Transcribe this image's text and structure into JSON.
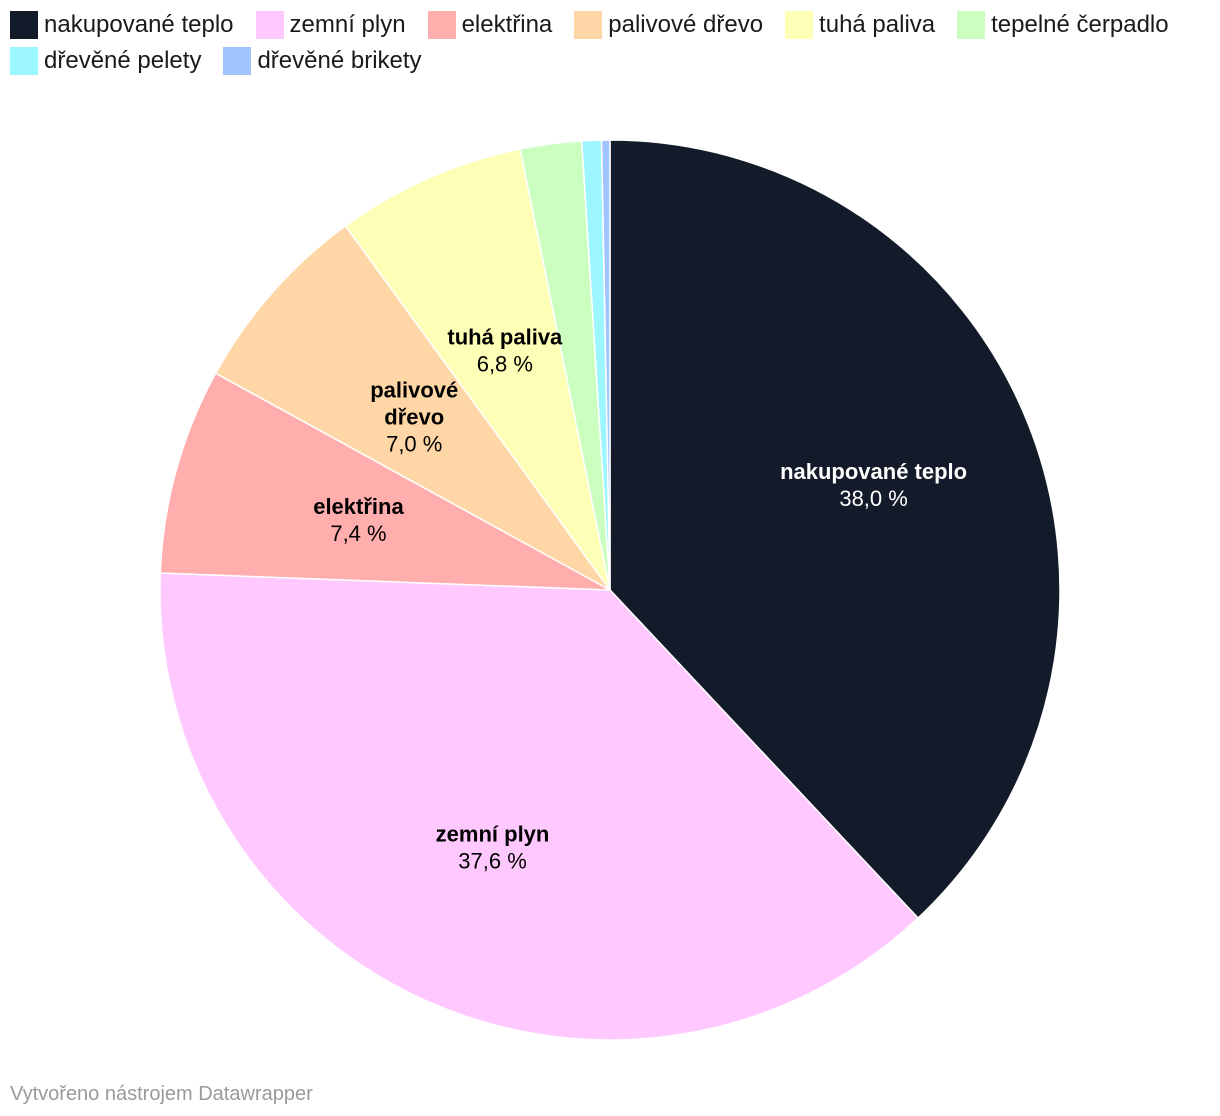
{
  "chart_data": {
    "type": "pie",
    "title": "",
    "legend_position": "top-left",
    "slices": [
      {
        "label": "nakupované teplo",
        "value": 38.0,
        "value_label": "38,0 %",
        "color": "#131a2a",
        "text_color": "#ffffff",
        "show_label": true
      },
      {
        "label": "zemní plyn",
        "value": 37.6,
        "value_label": "37,6 %",
        "color": "#ffc8ff",
        "text_color": "#000000",
        "show_label": true
      },
      {
        "label": "elektřina",
        "value": 7.4,
        "value_label": "7,4 %",
        "color": "#ffadad",
        "text_color": "#000000",
        "show_label": true
      },
      {
        "label": "palivové dřevo",
        "value": 7.0,
        "value_label": "7,0 %",
        "color": "#ffd6a5",
        "text_color": "#000000",
        "show_label": true,
        "label_lines": [
          "palivové",
          "dřevo"
        ]
      },
      {
        "label": "tuhá paliva",
        "value": 6.8,
        "value_label": "6,8 %",
        "color": "#fdffb6",
        "text_color": "#000000",
        "show_label": true
      },
      {
        "label": "tepelné čerpadlo",
        "value": 2.2,
        "value_label": "",
        "color": "#caffbf",
        "text_color": "#000000",
        "show_label": false
      },
      {
        "label": "dřevěné pelety",
        "value": 0.7,
        "value_label": "",
        "color": "#9bf6ff",
        "text_color": "#000000",
        "show_label": false
      },
      {
        "label": "dřevěné brikety",
        "value": 0.3,
        "value_label": "",
        "color": "#a0c4ff",
        "text_color": "#000000",
        "show_label": false
      }
    ]
  },
  "footer": {
    "credit": "Vytvořeno nástrojem Datawrapper"
  }
}
